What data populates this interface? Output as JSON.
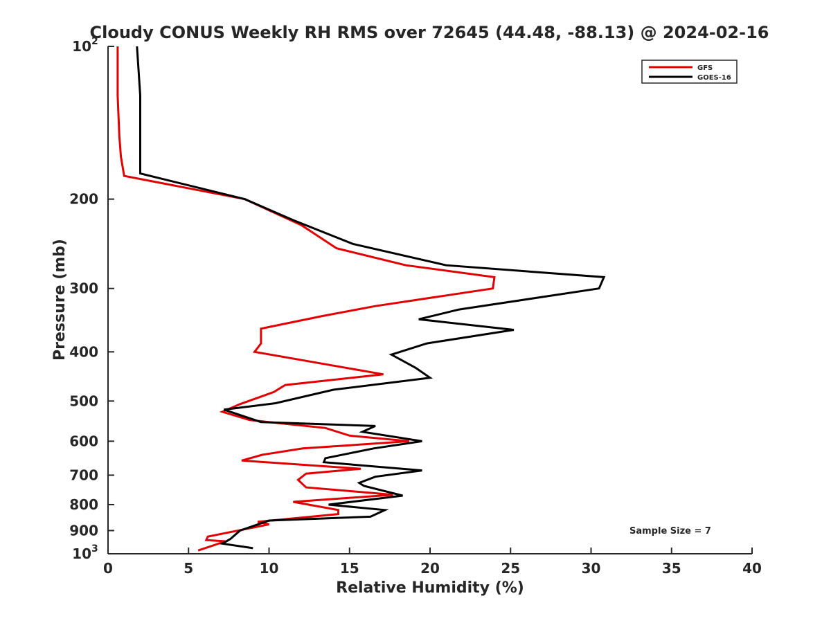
{
  "chart_data": {
    "type": "line",
    "title": "Cloudy CONUS Weekly RH RMS over 72645 (44.48, -88.13) @ 2024-02-16",
    "xlabel": "Relative Humidity (%)",
    "ylabel": "Pressure (mb)",
    "xlim": [
      0,
      40
    ],
    "ylim": [
      100,
      1000
    ],
    "y_scale": "log",
    "y_reversed": true,
    "x_ticks": [
      0,
      5,
      10,
      15,
      20,
      25,
      30,
      35,
      40
    ],
    "x_tick_labels": [
      "0",
      "5",
      "10",
      "15",
      "20",
      "25",
      "30",
      "35",
      "40"
    ],
    "y_ticks": [
      200,
      300,
      400,
      500,
      600,
      700,
      800,
      900
    ],
    "y_tick_labels": [
      "200",
      "300",
      "400",
      "500",
      "600",
      "700",
      "800",
      "900"
    ],
    "y_end_labels": [
      {
        "value": 100,
        "base": "10",
        "exp": "2"
      },
      {
        "value": 1000,
        "base": "10",
        "exp": "3"
      }
    ],
    "grid": false,
    "legend_position": "top-right",
    "annotation": "Sample Size = 7",
    "series": [
      {
        "name": "GFS",
        "color": "#e00000",
        "points": [
          [
            0.6,
            100
          ],
          [
            0.6,
            125
          ],
          [
            0.7,
            150
          ],
          [
            0.8,
            165
          ],
          [
            1.0,
            180
          ],
          [
            8.5,
            200
          ],
          [
            12.0,
            225
          ],
          [
            14.2,
            250
          ],
          [
            18.5,
            270
          ],
          [
            24.0,
            285
          ],
          [
            23.9,
            300
          ],
          [
            16.6,
            325
          ],
          [
            13.3,
            340
          ],
          [
            9.5,
            360
          ],
          [
            9.5,
            385
          ],
          [
            9.1,
            400
          ],
          [
            17.1,
            443
          ],
          [
            11.0,
            465
          ],
          [
            10.3,
            480
          ],
          [
            8.2,
            507
          ],
          [
            7.1,
            525
          ],
          [
            8.8,
            545
          ],
          [
            13.5,
            565
          ],
          [
            15.0,
            585
          ],
          [
            18.7,
            600
          ],
          [
            12.1,
            620
          ],
          [
            9.6,
            638
          ],
          [
            8.3,
            655
          ],
          [
            15.7,
            680
          ],
          [
            12.3,
            695
          ],
          [
            11.8,
            715
          ],
          [
            12.3,
            740
          ],
          [
            17.7,
            765
          ],
          [
            11.5,
            790
          ],
          [
            14.3,
            820
          ],
          [
            14.3,
            835
          ],
          [
            9.3,
            865
          ],
          [
            10.0,
            875
          ],
          [
            6.2,
            925
          ],
          [
            6.1,
            940
          ],
          [
            7.3,
            945
          ],
          [
            5.6,
            985
          ]
        ]
      },
      {
        "name": "GOES-16",
        "color": "#000000",
        "points": [
          [
            1.8,
            100
          ],
          [
            2.0,
            125
          ],
          [
            2.0,
            150
          ],
          [
            2.0,
            178
          ],
          [
            8.5,
            200
          ],
          [
            11.5,
            220
          ],
          [
            15.2,
            245
          ],
          [
            21.0,
            270
          ],
          [
            30.8,
            285
          ],
          [
            30.5,
            300
          ],
          [
            21.8,
            330
          ],
          [
            19.3,
            345
          ],
          [
            25.2,
            362
          ],
          [
            19.8,
            385
          ],
          [
            17.6,
            405
          ],
          [
            19.1,
            430
          ],
          [
            20.0,
            450
          ],
          [
            14.0,
            475
          ],
          [
            10.4,
            505
          ],
          [
            7.2,
            520
          ],
          [
            9.5,
            550
          ],
          [
            16.6,
            560
          ],
          [
            15.8,
            575
          ],
          [
            19.5,
            600
          ],
          [
            16.5,
            620
          ],
          [
            13.5,
            648
          ],
          [
            13.4,
            660
          ],
          [
            19.5,
            685
          ],
          [
            16.6,
            705
          ],
          [
            15.6,
            725
          ],
          [
            15.9,
            735
          ],
          [
            18.3,
            768
          ],
          [
            13.7,
            800
          ],
          [
            17.2,
            820
          ],
          [
            16.3,
            845
          ],
          [
            10.0,
            860
          ],
          [
            8.2,
            900
          ],
          [
            7.6,
            935
          ],
          [
            7.1,
            955
          ],
          [
            9.0,
            975
          ]
        ]
      }
    ]
  }
}
